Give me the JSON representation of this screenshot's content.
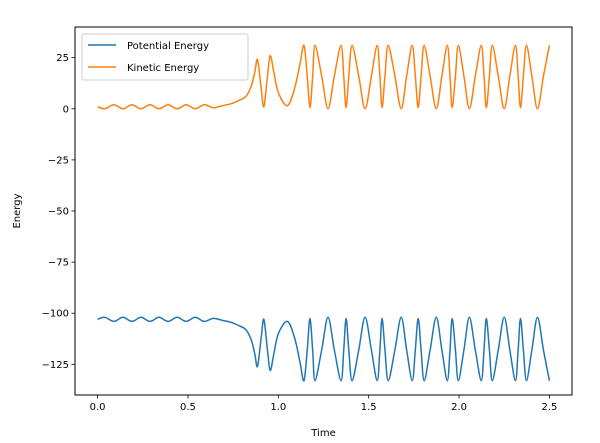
{
  "chart_data": {
    "type": "line",
    "title": "",
    "xlabel": "Time",
    "ylabel": "Energy",
    "xlim": [
      -0.125,
      2.625
    ],
    "ylim": [
      -140,
      40
    ],
    "grid": false,
    "legend_position": "top-left",
    "xticks": [
      0.0,
      0.5,
      1.0,
      1.5,
      2.0,
      2.5
    ],
    "xtick_labels": [
      "0.0",
      "0.5",
      "1.0",
      "1.5",
      "2.0",
      "2.5"
    ],
    "yticks": [
      25,
      0,
      -25,
      -50,
      -75,
      -100,
      -125
    ],
    "ytick_labels": [
      "25",
      "0",
      "−25",
      "−50",
      "−75",
      "−100",
      "−125"
    ],
    "series": [
      {
        "name": "Potential Energy",
        "color": "#1f77b4",
        "x": [
          0.0,
          0.04,
          0.09,
          0.14,
          0.19,
          0.24,
          0.29,
          0.34,
          0.39,
          0.44,
          0.49,
          0.54,
          0.59,
          0.64,
          0.69,
          0.74,
          0.78,
          0.82,
          0.85,
          0.87,
          0.885,
          0.905,
          0.92,
          0.94,
          0.955,
          0.975,
          1.0,
          1.05,
          1.09,
          1.12,
          1.142,
          1.16,
          1.175,
          1.19,
          1.203,
          1.24,
          1.275,
          1.31,
          1.347,
          1.362,
          1.375,
          1.39,
          1.408,
          1.445,
          1.48,
          1.515,
          1.547,
          1.562,
          1.574,
          1.59,
          1.608,
          1.645,
          1.68,
          1.71,
          1.741,
          1.758,
          1.774,
          1.79,
          1.807,
          1.84,
          1.874,
          1.905,
          1.935,
          1.95,
          1.962,
          1.98,
          1.996,
          2.027,
          2.057,
          2.09,
          2.123,
          2.138,
          2.151,
          2.168,
          2.184,
          2.217,
          2.25,
          2.281,
          2.312,
          2.327,
          2.34,
          2.356,
          2.373,
          2.403,
          2.434,
          2.467,
          2.5
        ],
        "values": [
          -103,
          -102,
          -104,
          -102,
          -104,
          -102,
          -104,
          -102,
          -104,
          -102,
          -104,
          -102,
          -104,
          -102.5,
          -103.5,
          -104.5,
          -106,
          -108,
          -113,
          -120,
          -126,
          -112,
          -103,
          -118,
          -128,
          -120,
          -110,
          -104,
          -112,
          -124,
          -133,
          -118,
          -102.5,
          -118,
          -133,
          -118,
          -102,
          -118,
          -133,
          -118,
          -102.5,
          -118,
          -133,
          -118,
          -102,
          -118,
          -133,
          -118,
          -102.5,
          -118,
          -133,
          -118,
          -102,
          -118,
          -133,
          -118,
          -102.5,
          -118,
          -133,
          -118,
          -102,
          -118,
          -133,
          -118,
          -102.5,
          -118,
          -133,
          -118,
          -102,
          -118,
          -133,
          -118,
          -102.5,
          -118,
          -133,
          -118,
          -102,
          -118,
          -133,
          -118,
          -102.5,
          -118,
          -133,
          -118,
          -102,
          -118,
          -133
        ]
      },
      {
        "name": "Kinetic Energy",
        "color": "#ff7f0e",
        "x": [
          0.0,
          0.04,
          0.09,
          0.14,
          0.19,
          0.24,
          0.29,
          0.34,
          0.39,
          0.44,
          0.49,
          0.54,
          0.59,
          0.64,
          0.69,
          0.74,
          0.78,
          0.82,
          0.85,
          0.87,
          0.885,
          0.905,
          0.92,
          0.94,
          0.955,
          0.975,
          1.0,
          1.05,
          1.09,
          1.12,
          1.142,
          1.16,
          1.175,
          1.19,
          1.203,
          1.24,
          1.275,
          1.31,
          1.347,
          1.362,
          1.375,
          1.39,
          1.408,
          1.445,
          1.48,
          1.515,
          1.547,
          1.562,
          1.574,
          1.59,
          1.608,
          1.645,
          1.68,
          1.71,
          1.741,
          1.758,
          1.774,
          1.79,
          1.807,
          1.84,
          1.874,
          1.905,
          1.935,
          1.95,
          1.962,
          1.98,
          1.996,
          2.027,
          2.057,
          2.09,
          2.123,
          2.138,
          2.151,
          2.168,
          2.184,
          2.217,
          2.25,
          2.281,
          2.312,
          2.327,
          2.34,
          2.356,
          2.373,
          2.403,
          2.434,
          2.467,
          2.5
        ],
        "values": [
          1,
          0,
          2,
          0,
          2,
          0,
          2,
          0,
          2,
          0,
          2,
          0,
          2,
          0.5,
          1.5,
          2.5,
          4,
          6,
          11,
          18,
          24,
          10,
          1,
          16,
          26,
          18,
          8,
          1.5,
          10,
          22,
          31,
          16,
          0.5,
          16,
          31,
          16,
          0,
          16,
          31,
          16,
          0.5,
          16,
          31,
          16,
          0,
          16,
          31,
          16,
          0.5,
          16,
          31,
          16,
          0,
          16,
          31,
          16,
          0.5,
          16,
          31,
          16,
          0,
          16,
          31,
          16,
          0.5,
          16,
          31,
          16,
          0,
          16,
          31,
          16,
          0.5,
          16,
          31,
          16,
          0,
          16,
          31,
          16,
          0.5,
          16,
          31,
          16,
          0,
          16,
          31
        ]
      }
    ]
  }
}
